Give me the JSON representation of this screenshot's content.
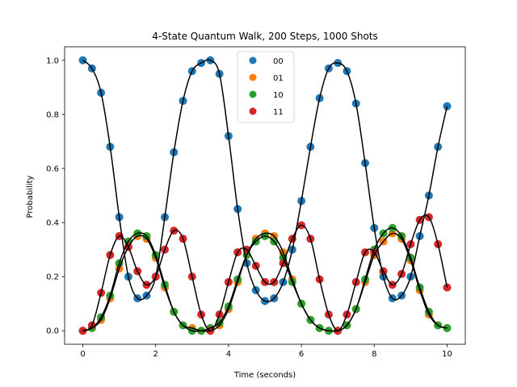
{
  "chart_data": {
    "type": "scatter",
    "title": "4-State Quantum Walk, 200 Steps, 1000 Shots",
    "xlabel": "Time (seconds)",
    "ylabel": "Probability",
    "xlim": [
      -0.5,
      10.5
    ],
    "ylim": [
      -0.05,
      1.05
    ],
    "xticks": [
      "0",
      "2",
      "4",
      "6",
      "8",
      "10"
    ],
    "yticks": [
      "0.0",
      "0.2",
      "0.4",
      "0.6",
      "0.8",
      "1.0"
    ],
    "grid": false,
    "legend_position": "top-center",
    "fit_line_color": "#000000",
    "series": [
      {
        "name": "00",
        "color": "#1f77b4",
        "x": [
          0.0,
          0.25,
          0.5,
          0.75,
          1.0,
          1.25,
          1.5,
          1.75,
          2.0,
          2.25,
          2.5,
          2.75,
          3.0,
          3.25,
          3.5,
          3.75,
          4.0,
          4.25,
          4.5,
          4.75,
          5.0,
          5.25,
          5.5,
          5.75,
          6.0,
          6.25,
          6.5,
          6.75,
          7.0,
          7.25,
          7.5,
          7.75,
          8.0,
          8.25,
          8.5,
          8.75,
          9.0,
          9.25,
          9.5,
          9.75,
          10.0
        ],
        "values": [
          1.0,
          0.97,
          0.88,
          0.68,
          0.42,
          0.2,
          0.12,
          0.13,
          0.2,
          0.42,
          0.66,
          0.85,
          0.96,
          0.99,
          1.0,
          0.95,
          0.72,
          0.45,
          0.25,
          0.15,
          0.11,
          0.12,
          0.18,
          0.3,
          0.48,
          0.68,
          0.86,
          0.97,
          0.99,
          0.96,
          0.84,
          0.62,
          0.38,
          0.2,
          0.12,
          0.13,
          0.2,
          0.35,
          0.5,
          0.68,
          0.83
        ]
      },
      {
        "name": "01",
        "color": "#ff7f0e",
        "x": [
          0.0,
          0.25,
          0.5,
          0.75,
          1.0,
          1.25,
          1.5,
          1.75,
          2.0,
          2.25,
          2.5,
          2.75,
          3.0,
          3.25,
          3.5,
          3.75,
          4.0,
          4.25,
          4.5,
          4.75,
          5.0,
          5.25,
          5.5,
          5.75,
          6.0,
          6.25,
          6.5,
          6.75,
          7.0,
          7.25,
          7.5,
          7.75,
          8.0,
          8.25,
          8.5,
          8.75,
          9.0,
          9.25,
          9.5,
          9.75,
          10.0
        ],
        "values": [
          0.0,
          0.01,
          0.04,
          0.12,
          0.23,
          0.31,
          0.35,
          0.34,
          0.27,
          0.16,
          0.07,
          0.02,
          0.01,
          0.0,
          0.0,
          0.02,
          0.08,
          0.18,
          0.28,
          0.34,
          0.36,
          0.35,
          0.29,
          0.19,
          0.1,
          0.04,
          0.01,
          0.0,
          0.0,
          0.02,
          0.08,
          0.18,
          0.28,
          0.33,
          0.36,
          0.34,
          0.26,
          0.15,
          0.06,
          0.02,
          0.01
        ]
      },
      {
        "name": "10",
        "color": "#2ca02c",
        "x": [
          0.0,
          0.25,
          0.5,
          0.75,
          1.0,
          1.25,
          1.5,
          1.75,
          2.0,
          2.25,
          2.5,
          2.75,
          3.0,
          3.25,
          3.5,
          3.75,
          4.0,
          4.25,
          4.5,
          4.75,
          5.0,
          5.25,
          5.5,
          5.75,
          6.0,
          6.25,
          6.5,
          6.75,
          7.0,
          7.25,
          7.5,
          7.75,
          8.0,
          8.25,
          8.5,
          8.75,
          9.0,
          9.25,
          9.5,
          9.75,
          10.0
        ],
        "values": [
          0.0,
          0.01,
          0.05,
          0.13,
          0.25,
          0.33,
          0.36,
          0.35,
          0.28,
          0.17,
          0.07,
          0.02,
          0.0,
          0.0,
          0.01,
          0.03,
          0.09,
          0.19,
          0.28,
          0.33,
          0.35,
          0.33,
          0.27,
          0.18,
          0.1,
          0.04,
          0.01,
          0.0,
          0.0,
          0.02,
          0.08,
          0.19,
          0.3,
          0.36,
          0.38,
          0.35,
          0.27,
          0.16,
          0.07,
          0.02,
          0.01
        ]
      },
      {
        "name": "11",
        "color": "#d62728",
        "x": [
          0.0,
          0.25,
          0.5,
          0.75,
          1.0,
          1.25,
          1.5,
          1.75,
          2.0,
          2.25,
          2.5,
          2.75,
          3.0,
          3.25,
          3.5,
          3.75,
          4.0,
          4.25,
          4.5,
          4.75,
          5.0,
          5.25,
          5.5,
          5.75,
          6.0,
          6.25,
          6.5,
          6.75,
          7.0,
          7.25,
          7.5,
          7.75,
          8.0,
          8.25,
          8.5,
          8.75,
          9.0,
          9.25,
          9.5,
          9.75,
          10.0
        ],
        "values": [
          0.0,
          0.02,
          0.14,
          0.28,
          0.35,
          0.31,
          0.22,
          0.17,
          0.2,
          0.3,
          0.37,
          0.34,
          0.2,
          0.06,
          0.0,
          0.06,
          0.18,
          0.29,
          0.3,
          0.24,
          0.18,
          0.18,
          0.25,
          0.34,
          0.39,
          0.34,
          0.19,
          0.06,
          0.0,
          0.06,
          0.18,
          0.29,
          0.29,
          0.22,
          0.17,
          0.21,
          0.32,
          0.41,
          0.42,
          0.32,
          0.16
        ]
      }
    ]
  }
}
